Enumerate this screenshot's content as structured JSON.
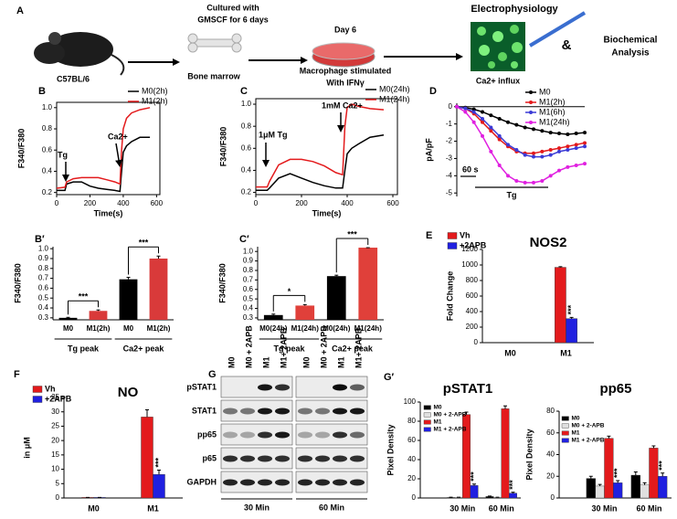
{
  "panel_a": {
    "label": "A",
    "mouse": "C57BL/6",
    "bone": "Bone marrow",
    "culture": [
      "Cultured with",
      "GMSCF for 6 days"
    ],
    "day": "Day 6",
    "stimulation": [
      "Macrophage stimulated",
      "With IFNγ"
    ],
    "electrophysiology": "Electrophysiology",
    "influx": "Ca2+ influx",
    "and": "&",
    "analysis": [
      "Biochemical",
      "Analysis"
    ]
  },
  "chart_data": [
    {
      "panel": "B",
      "type": "line",
      "frame": true,
      "y_label": "F340/F380",
      "x_label": "Time(s)",
      "x": [
        0,
        50,
        60,
        100,
        150,
        200,
        250,
        300,
        350,
        380,
        390,
        400,
        420,
        450,
        500,
        560
      ],
      "xlim": [
        0,
        620
      ],
      "xticks": [
        0,
        200,
        400,
        600
      ],
      "ylim": [
        0.18,
        1.05
      ],
      "yticks": [
        0.2,
        0.4,
        0.6,
        0.8,
        {
          "value": 1,
          "label": "1.0"
        }
      ],
      "series": [
        {
          "name": "M0(2h)",
          "color": "#000000",
          "values": [
            0.22,
            0.22,
            0.28,
            0.3,
            0.3,
            0.26,
            0.24,
            0.23,
            0.22,
            0.21,
            0.4,
            0.58,
            0.64,
            0.68,
            0.72,
            0.72
          ]
        },
        {
          "name": "M1(2h)",
          "color": "#e31a1c",
          "values": [
            0.24,
            0.25,
            0.3,
            0.33,
            0.34,
            0.34,
            0.34,
            0.32,
            0.3,
            0.28,
            0.6,
            0.8,
            0.9,
            0.95,
            0.98,
            1.0
          ]
        }
      ],
      "annotations": [
        "Tg",
        "Ca2+"
      ]
    },
    {
      "panel": "C",
      "type": "line",
      "frame": true,
      "y_label": "F340/F380",
      "x_label": "Time(s)",
      "x": [
        0,
        50,
        60,
        100,
        150,
        200,
        250,
        300,
        350,
        380,
        390,
        400,
        420,
        450,
        500,
        560
      ],
      "xlim": [
        0,
        620
      ],
      "xticks": [
        0,
        200,
        400,
        600
      ],
      "ylim": [
        0.18,
        1.05
      ],
      "yticks": [
        0.2,
        0.4,
        0.6,
        0.8,
        {
          "value": 1,
          "label": "1.0"
        }
      ],
      "series": [
        {
          "name": "M0(24h)",
          "color": "#000000",
          "values": [
            0.22,
            0.22,
            0.24,
            0.33,
            0.37,
            0.33,
            0.29,
            0.26,
            0.24,
            0.24,
            0.4,
            0.55,
            0.6,
            0.64,
            0.7,
            0.72
          ]
        },
        {
          "name": "M1(24h)",
          "color": "#e31a1c",
          "values": [
            0.25,
            0.25,
            0.3,
            0.45,
            0.5,
            0.5,
            0.48,
            0.44,
            0.38,
            0.36,
            0.8,
            0.97,
            1.0,
            0.98,
            0.96,
            0.95
          ]
        }
      ],
      "annotations": [
        "1μM Tg",
        "1mM Ca2+"
      ]
    },
    {
      "panel": "D",
      "type": "line",
      "markers": true,
      "y_label": "pA/pF",
      "x": [
        0,
        20,
        40,
        60,
        80,
        100,
        120,
        140,
        160,
        180,
        200,
        220,
        240,
        260,
        280,
        300
      ],
      "xlim": [
        0,
        300
      ],
      "ylim": [
        -5.2,
        0.2
      ],
      "yticks": [
        0,
        -1,
        -2,
        -3,
        -4,
        -5
      ],
      "series": [
        {
          "name": "M0",
          "color": "#000000",
          "values": [
            0,
            -0.05,
            -0.15,
            -0.3,
            -0.5,
            -0.7,
            -0.9,
            -1.05,
            -1.2,
            -1.3,
            -1.4,
            -1.5,
            -1.55,
            -1.6,
            -1.55,
            -1.5
          ]
        },
        {
          "name": "M1(2h)",
          "color": "#e31a1c",
          "values": [
            0,
            -0.1,
            -0.4,
            -0.9,
            -1.4,
            -1.9,
            -2.3,
            -2.6,
            -2.7,
            -2.7,
            -2.6,
            -2.5,
            -2.4,
            -2.3,
            -2.2,
            -2.1
          ]
        },
        {
          "name": "M1(6h)",
          "color": "#3b3bd6",
          "values": [
            0,
            -0.1,
            -0.3,
            -0.7,
            -1.2,
            -1.7,
            -2.2,
            -2.5,
            -2.8,
            -2.9,
            -2.9,
            -2.8,
            -2.6,
            -2.5,
            -2.4,
            -2.3
          ]
        },
        {
          "name": "M1(24h)",
          "color": "#e020e0",
          "values": [
            0,
            -0.3,
            -0.9,
            -1.7,
            -2.6,
            -3.4,
            -4.0,
            -4.3,
            -4.4,
            -4.4,
            -4.3,
            -4.0,
            -3.7,
            -3.5,
            -3.4,
            -3.3
          ]
        }
      ],
      "annotations": [
        "60 s",
        "Tg"
      ]
    },
    {
      "panel": "B′",
      "type": "bar",
      "y_label": "F340/F380",
      "categories": [
        "M0",
        "M1(2h)",
        "M0",
        "M1(2h)"
      ],
      "values": [
        0.3,
        0.37,
        0.69,
        0.9
      ],
      "errors": [
        0.005,
        0.01,
        0.02,
        0.025
      ],
      "colors": [
        "#000000",
        "#d93a3a",
        "#000000",
        "#d93a3a"
      ],
      "ylim": [
        0.28,
        1.02
      ],
      "yticks": [
        0.3,
        0.4,
        0.5,
        0.6,
        0.7,
        0.8,
        0.9,
        {
          "value": 1,
          "label": "1.0"
        }
      ],
      "groups": [
        {
          "label": "Tg peak",
          "significance": "***"
        },
        {
          "label": "Ca2+ peak",
          "significance": "***"
        }
      ]
    },
    {
      "panel": "C′",
      "type": "bar",
      "y_label": "F340/F380",
      "categories": [
        "M0(24h)",
        "M1(24h)",
        "M0(24h)",
        "M1(24h)"
      ],
      "values": [
        0.33,
        0.43,
        0.74,
        1.04
      ],
      "errors": [
        0.01,
        0.01,
        0.01,
        0.0
      ],
      "colors": [
        "#000000",
        "#e0403a",
        "#000000",
        "#e0403a"
      ],
      "ylim": [
        0.28,
        1.05
      ],
      "yticks": [
        0.3,
        0.4,
        0.5,
        0.6,
        0.7,
        0.8,
        0.9,
        {
          "value": 1,
          "label": "1.0"
        }
      ],
      "groups": [
        {
          "label": "Tg peak",
          "significance": "*"
        },
        {
          "label": "Ca2+ peak",
          "significance": "***"
        }
      ]
    },
    {
      "panel": "E",
      "type": "grouped_bar",
      "title": "NOS2",
      "y_label": "Fold Change",
      "legend": "top-left",
      "categories": [
        "M0",
        "M1"
      ],
      "ylim": [
        0,
        1200
      ],
      "yticks": [
        0,
        200,
        400,
        600,
        800,
        1000,
        1200
      ],
      "series": [
        {
          "name": "Vh",
          "color": "#e31a1c",
          "values": [
            0,
            970
          ],
          "errors": [
            0,
            8
          ]
        },
        {
          "name": "+2APB",
          "color": "#2020e0",
          "values": [
            0,
            310
          ],
          "errors": [
            0,
            15
          ],
          "significance": [
            null,
            "***"
          ]
        }
      ]
    },
    {
      "panel": "F",
      "type": "grouped_bar",
      "title": "NO",
      "y_label": "in μM",
      "legend": "top-left",
      "categories": [
        "M0",
        "M1"
      ],
      "ylim": [
        0,
        35
      ],
      "yticks": [
        0,
        5,
        10,
        15,
        20,
        25,
        30,
        35
      ],
      "series": [
        {
          "name": "Vh",
          "color": "#e31a1c",
          "values": [
            0.2,
            28.2
          ],
          "errors": [
            0,
            2.5
          ]
        },
        {
          "name": "+2APB",
          "color": "#2020e0",
          "values": [
            0.2,
            8.2
          ],
          "errors": [
            0,
            1.5
          ],
          "significance": [
            null,
            "***"
          ]
        }
      ]
    },
    {
      "panel": "G′",
      "type": "grouped_bar",
      "title": "pSTAT1",
      "y_label": "Pixel Density",
      "legend": "top-left",
      "categories": [
        "30 Min",
        "60 Min"
      ],
      "ylim": [
        0,
        100
      ],
      "yticks": [
        0,
        20,
        40,
        60,
        80,
        100
      ],
      "series": [
        {
          "name": "M0",
          "color": "#000000",
          "values": [
            0.5,
            1.5
          ],
          "errors": [
            0.3,
            0.5
          ]
        },
        {
          "name": "M0 + 2-APB",
          "color": "#e0e0e0",
          "values": [
            0.5,
            0.5
          ],
          "errors": [
            0.3,
            0.3
          ]
        },
        {
          "name": "M1",
          "color": "#e31a1c",
          "values": [
            87,
            93
          ],
          "errors": [
            2.5,
            3
          ]
        },
        {
          "name": "M1 + 2-APB",
          "color": "#2020e0",
          "values": [
            13,
            5
          ],
          "errors": [
            1.5,
            1
          ],
          "significance": [
            "***",
            "***"
          ]
        }
      ]
    },
    {
      "type": "grouped_bar",
      "title": "pp65",
      "y_label": "Pixel Density",
      "legend": "top-left",
      "categories": [
        "30 Min",
        "60 Min"
      ],
      "ylim": [
        0,
        80
      ],
      "yticks": [
        0,
        20,
        40,
        60,
        80
      ],
      "series": [
        {
          "name": "M0",
          "color": "#000000",
          "values": [
            18,
            21
          ],
          "errors": [
            2,
            3
          ]
        },
        {
          "name": "M0 + 2-APB",
          "color": "#e0e0e0",
          "values": [
            11,
            12
          ],
          "errors": [
            1.5,
            2
          ]
        },
        {
          "name": "M1",
          "color": "#e31a1c",
          "values": [
            55,
            46
          ],
          "errors": [
            2,
            2
          ]
        },
        {
          "name": "M1 + 2-APB",
          "color": "#2020e0",
          "values": [
            14,
            20
          ],
          "errors": [
            2,
            3
          ],
          "significance": [
            "***",
            "***"
          ]
        }
      ]
    }
  ],
  "blot": {
    "label": "G",
    "lanes": [
      "M0",
      "M0 + 2APB",
      "M1",
      "M1+ 2APB"
    ],
    "proteins": [
      "pSTAT1",
      "STAT1",
      "pp65",
      "p65",
      "GAPDH"
    ],
    "times": [
      "30 Min",
      "60 Min"
    ]
  }
}
